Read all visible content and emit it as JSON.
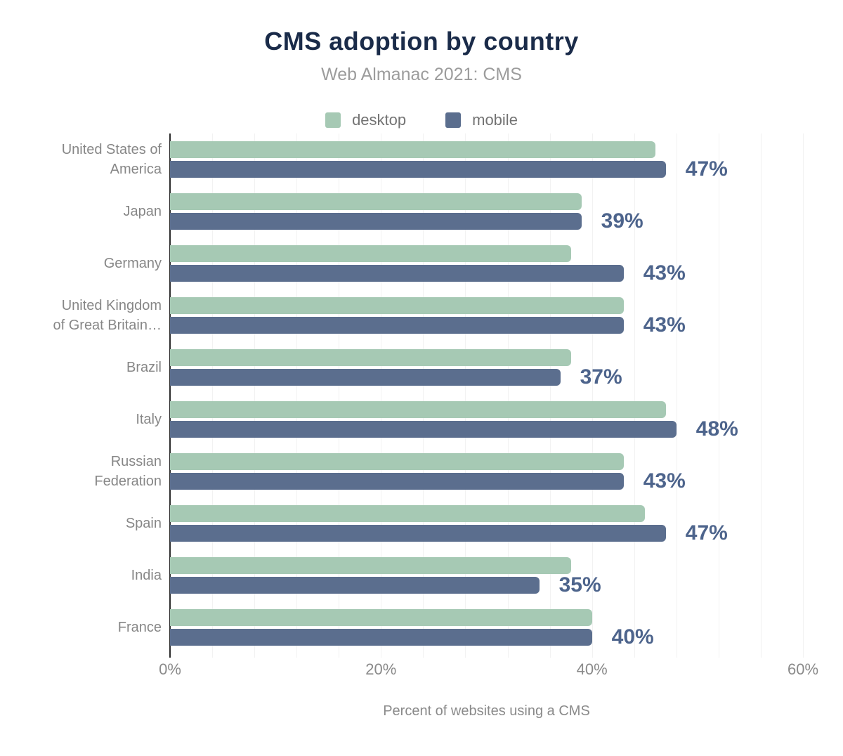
{
  "header": {
    "title": "CMS adoption by country",
    "subtitle": "Web Almanac 2021: CMS"
  },
  "chart_data": {
    "type": "bar",
    "orientation": "horizontal",
    "title": "CMS adoption by country",
    "subtitle": "Web Almanac 2021: CMS",
    "categories": [
      "United States of\nAmerica",
      "Japan",
      "Germany",
      "United Kingdom\nof Great Britain…",
      "Brazil",
      "Italy",
      "Russian\nFederation",
      "Spain",
      "India",
      "France"
    ],
    "series": [
      {
        "name": "desktop",
        "color": "#a6c9b4",
        "values": [
          46,
          39,
          38,
          43,
          38,
          47,
          43,
          45,
          38,
          40
        ]
      },
      {
        "name": "mobile",
        "color": "#5b6e8e",
        "values": [
          47,
          39,
          43,
          43,
          37,
          48,
          43,
          47,
          35,
          40
        ]
      }
    ],
    "bar_labels": [
      "47%",
      "39%",
      "43%",
      "43%",
      "37%",
      "48%",
      "43%",
      "47%",
      "35%",
      "40%"
    ],
    "value_label_color": "#4d648c",
    "xlabel": "Percent of websites using a CMS",
    "x_ticks": [
      "0%",
      "20%",
      "40%",
      "60%"
    ],
    "xlim": [
      0,
      60
    ],
    "grid_step": 4,
    "grid": true,
    "legend_position": "top",
    "title_color": "#1a2b49",
    "subtitle_color": "#9c9c9c"
  }
}
